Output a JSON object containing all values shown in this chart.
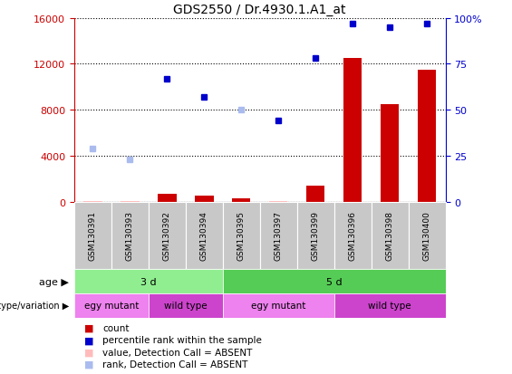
{
  "title": "GDS2550 / Dr.4930.1.A1_at",
  "samples": [
    "GSM130391",
    "GSM130393",
    "GSM130392",
    "GSM130394",
    "GSM130395",
    "GSM130397",
    "GSM130399",
    "GSM130396",
    "GSM130398",
    "GSM130400"
  ],
  "count_values": [
    50,
    50,
    700,
    500,
    300,
    50,
    1400,
    12500,
    8500,
    11500
  ],
  "count_absent": [
    true,
    true,
    false,
    false,
    false,
    true,
    false,
    false,
    false,
    false
  ],
  "rank_values": [
    29,
    23,
    67,
    57,
    50,
    44,
    78,
    97,
    95,
    97
  ],
  "rank_absent": [
    true,
    true,
    false,
    false,
    true,
    false,
    false,
    false,
    false,
    false
  ],
  "ylim_left": [
    0,
    16000
  ],
  "ylim_right": [
    0,
    100
  ],
  "yticks_left": [
    0,
    4000,
    8000,
    12000,
    16000
  ],
  "yticks_right": [
    0,
    25,
    50,
    75,
    100
  ],
  "age_groups": [
    {
      "label": "3 d",
      "start": 0,
      "end": 4,
      "color": "#90ee90"
    },
    {
      "label": "5 d",
      "start": 4,
      "end": 10,
      "color": "#55cc55"
    }
  ],
  "genotype_groups": [
    {
      "label": "egy mutant",
      "start": 0,
      "end": 2,
      "color": "#ee82ee"
    },
    {
      "label": "wild type",
      "start": 2,
      "end": 4,
      "color": "#cc44cc"
    },
    {
      "label": "egy mutant",
      "start": 4,
      "end": 7,
      "color": "#ee82ee"
    },
    {
      "label": "wild type",
      "start": 7,
      "end": 10,
      "color": "#cc44cc"
    }
  ],
  "age_label": "age",
  "genotype_label": "genotype/variation",
  "bar_color_present": "#cc0000",
  "bar_color_absent": "#ffbbbb",
  "dot_color_present": "#0000cc",
  "dot_color_absent": "#aabbee",
  "tick_color_left": "#cc0000",
  "tick_color_right": "#0000cc",
  "legend_items": [
    {
      "label": "count",
      "color": "#cc0000"
    },
    {
      "label": "percentile rank within the sample",
      "color": "#0000cc"
    },
    {
      "label": "value, Detection Call = ABSENT",
      "color": "#ffbbbb"
    },
    {
      "label": "rank, Detection Call = ABSENT",
      "color": "#aabbee"
    }
  ],
  "tick_bg": "#c8c8c8"
}
